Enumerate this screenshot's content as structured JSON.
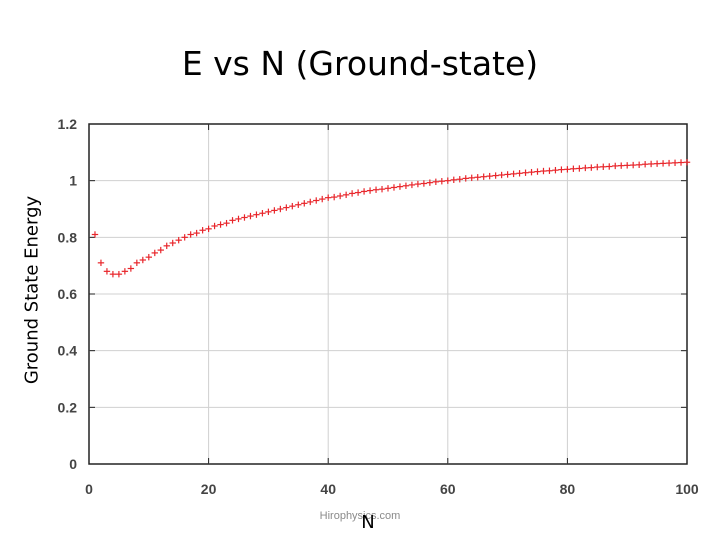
{
  "slide": {
    "title": "E vs N (Ground-state)",
    "watermark": "Hirophysics.com"
  },
  "chart_data": {
    "type": "scatter",
    "title": "E vs N (Ground-state)",
    "xlabel": "N",
    "ylabel": "Ground State Energy",
    "xlim": [
      0,
      100
    ],
    "ylim": [
      0,
      1.2
    ],
    "xticks": [
      "0",
      "20",
      "40",
      "60",
      "80",
      "100"
    ],
    "yticks": [
      "0",
      "0.2",
      "0.4",
      "0.6",
      "0.8",
      "1",
      "1.2"
    ],
    "grid": true,
    "legend": "none",
    "marker": "plus",
    "color": "#e8262b",
    "series": [
      {
        "x": [
          1,
          2,
          3,
          4,
          5,
          6,
          7,
          8,
          9,
          10,
          11,
          12,
          13,
          14,
          15,
          16,
          17,
          18,
          19,
          20,
          21,
          22,
          23,
          24,
          25,
          26,
          27,
          28,
          29,
          30,
          31,
          32,
          33,
          34,
          35,
          36,
          37,
          38,
          39,
          40,
          41,
          42,
          43,
          44,
          45,
          46,
          47,
          48,
          49,
          50,
          51,
          52,
          53,
          54,
          55,
          56,
          57,
          58,
          59,
          60,
          61,
          62,
          63,
          64,
          65,
          66,
          67,
          68,
          69,
          70,
          71,
          72,
          73,
          74,
          75,
          76,
          77,
          78,
          79,
          80,
          81,
          82,
          83,
          84,
          85,
          86,
          87,
          88,
          89,
          90,
          91,
          92,
          93,
          94,
          95,
          96,
          97,
          98,
          99,
          100
        ],
        "y": [
          0.81,
          0.71,
          0.68,
          0.67,
          0.67,
          0.68,
          0.69,
          0.71,
          0.72,
          0.73,
          0.745,
          0.755,
          0.77,
          0.78,
          0.79,
          0.8,
          0.81,
          0.815,
          0.825,
          0.83,
          0.84,
          0.845,
          0.85,
          0.86,
          0.865,
          0.87,
          0.875,
          0.88,
          0.885,
          0.89,
          0.895,
          0.9,
          0.905,
          0.91,
          0.915,
          0.92,
          0.925,
          0.93,
          0.935,
          0.94,
          0.942,
          0.946,
          0.95,
          0.955,
          0.958,
          0.962,
          0.965,
          0.968,
          0.97,
          0.973,
          0.976,
          0.979,
          0.982,
          0.985,
          0.988,
          0.99,
          0.993,
          0.996,
          0.998,
          1.0,
          1.003,
          1.005,
          1.008,
          1.01,
          1.012,
          1.014,
          1.016,
          1.018,
          1.02,
          1.022,
          1.024,
          1.026,
          1.028,
          1.03,
          1.032,
          1.034,
          1.035,
          1.037,
          1.039,
          1.04,
          1.042,
          1.043,
          1.045,
          1.046,
          1.048,
          1.049,
          1.05,
          1.052,
          1.053,
          1.054,
          1.055,
          1.056,
          1.058,
          1.059,
          1.06,
          1.061,
          1.062,
          1.063,
          1.064,
          1.065
        ]
      }
    ]
  }
}
